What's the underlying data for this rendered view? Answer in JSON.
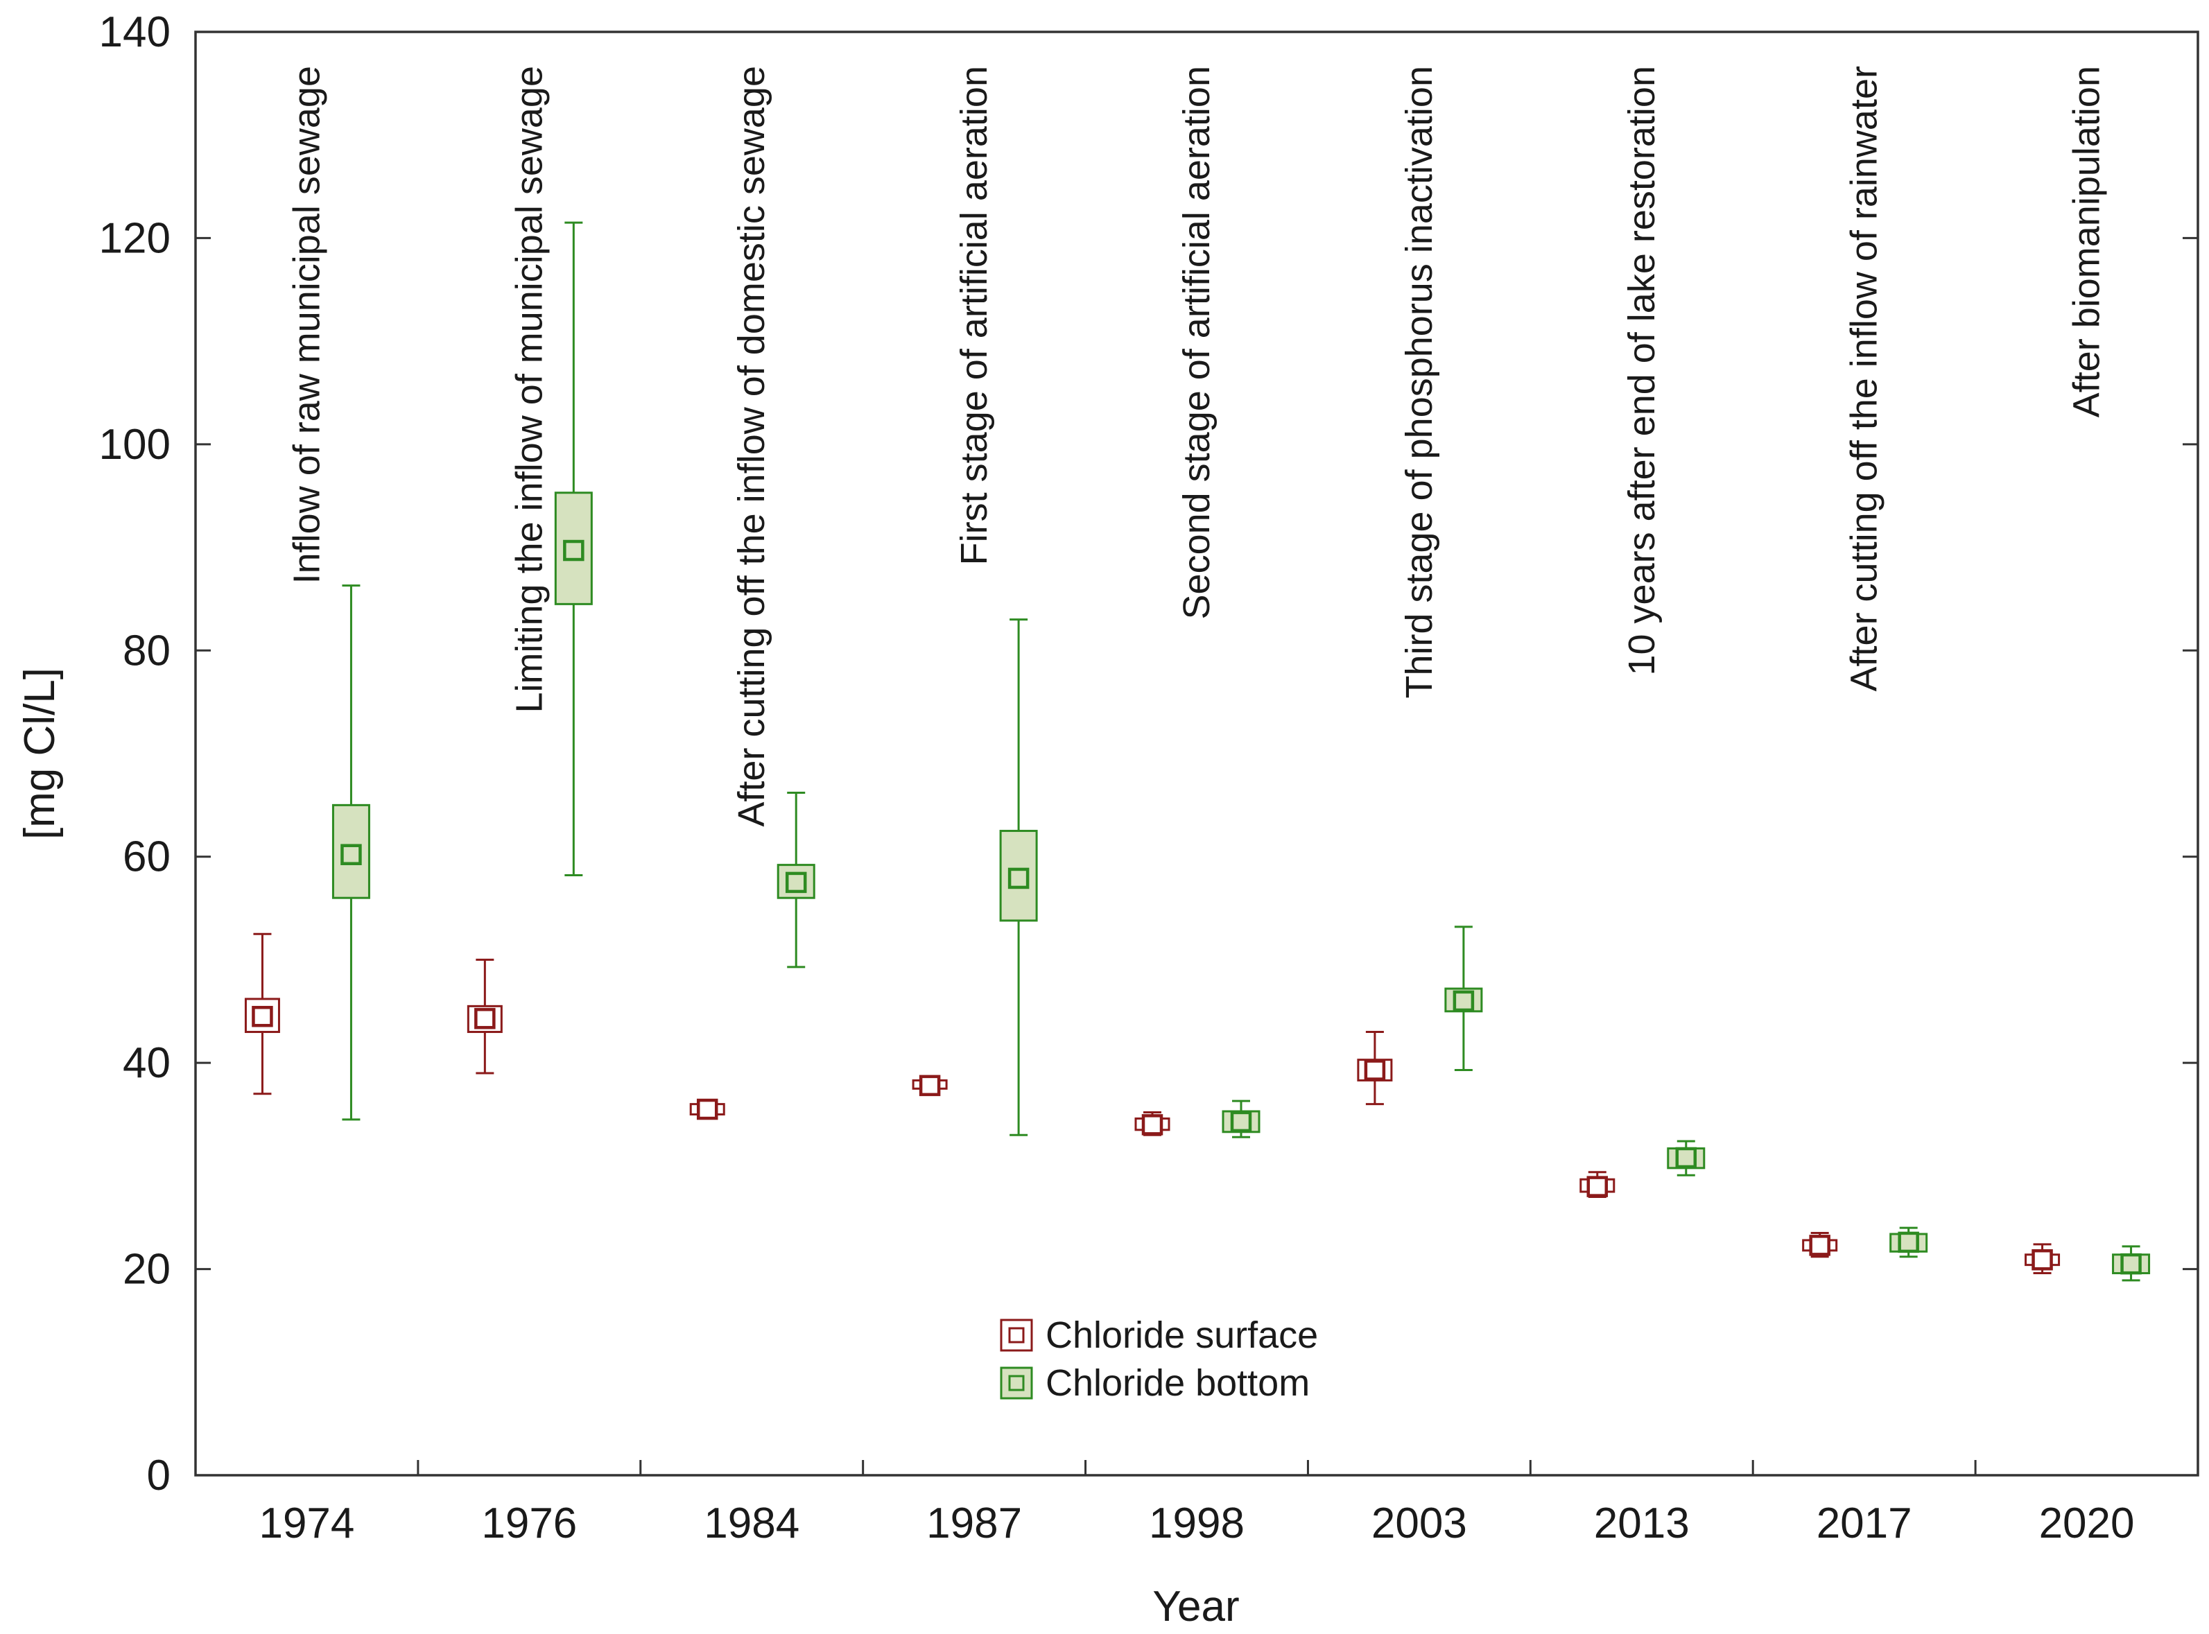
{
  "chart_data": {
    "type": "box",
    "title": "",
    "xlabel": "Year",
    "ylabel": "[mg Cl/L]",
    "ylim": [
      0,
      140
    ],
    "yticks": [
      0,
      20,
      40,
      60,
      80,
      100,
      120,
      140
    ],
    "grid": false,
    "legend_position": "bottom-center",
    "categories": [
      "1974",
      "1976",
      "1984",
      "1987",
      "1998",
      "2003",
      "2013",
      "2017",
      "2020"
    ],
    "annotations": [
      "Inflow of raw municipal sewage",
      "Limiting the inflow of municipal sewage",
      "After cutting off the inflow of domestic sewage",
      "First stage of artificial aeration",
      "Second stage of artificial aeration",
      "Third stage of phosphorus inactivation",
      "10 years after end of lake restoration",
      "After cutting off the inflow of rainwater",
      "After biomanipulation"
    ],
    "series": [
      {
        "name": "Chloride surface",
        "color": "#8b1a1a",
        "fill": "#ffffff",
        "mean": [
          44.5,
          44.3,
          35.5,
          37.8,
          34.0,
          39.3,
          28.0,
          22.3,
          20.9
        ],
        "box_low": [
          43.0,
          43.0,
          35.0,
          37.5,
          33.5,
          38.3,
          27.5,
          21.8,
          20.4
        ],
        "box_high": [
          46.2,
          45.5,
          36.0,
          38.3,
          34.6,
          40.3,
          28.7,
          22.8,
          21.4
        ],
        "whisker_low": [
          37.0,
          39.0,
          34.8,
          37.4,
          33.0,
          36.0,
          27.0,
          21.2,
          19.6
        ],
        "whisker_high": [
          52.5,
          50.0,
          36.3,
          38.5,
          35.2,
          43.0,
          29.4,
          23.5,
          22.4
        ]
      },
      {
        "name": "Chloride bottom",
        "color": "#2e8b22",
        "fill": "#d6e2bf",
        "mean": [
          60.2,
          89.7,
          57.5,
          57.9,
          34.3,
          46.0,
          30.8,
          22.6,
          20.5
        ],
        "box_low": [
          56.0,
          84.5,
          56.0,
          53.8,
          33.3,
          45.0,
          29.8,
          21.7,
          19.6
        ],
        "box_high": [
          65.0,
          95.3,
          59.2,
          62.5,
          35.3,
          47.2,
          31.7,
          23.4,
          21.4
        ],
        "whisker_low": [
          34.5,
          58.2,
          49.3,
          33.0,
          32.8,
          39.3,
          29.1,
          21.2,
          18.9
        ],
        "whisker_high": [
          86.3,
          121.5,
          66.2,
          83.0,
          36.3,
          53.2,
          32.4,
          24.0,
          22.2
        ]
      }
    ]
  }
}
